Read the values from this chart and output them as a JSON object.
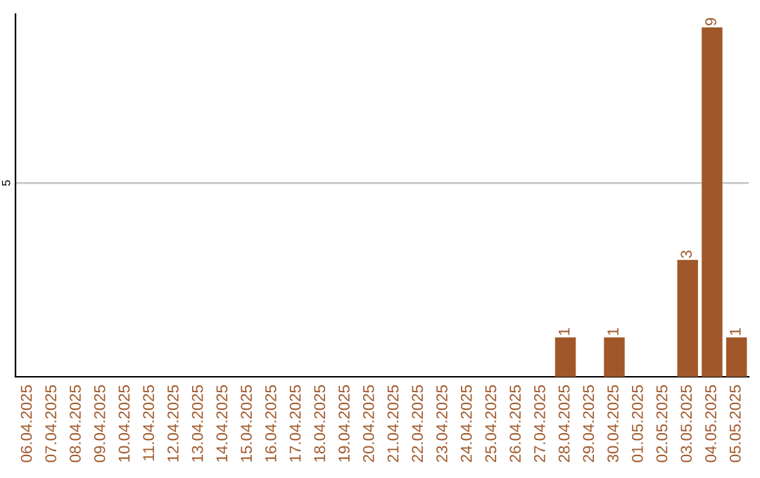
{
  "chart_data": {
    "type": "bar",
    "categories": [
      "06.04.2025",
      "07.04.2025",
      "08.04.2025",
      "09.04.2025",
      "10.04.2025",
      "11.04.2025",
      "12.04.2025",
      "13.04.2025",
      "14.04.2025",
      "15.04.2025",
      "16.04.2025",
      "17.04.2025",
      "18.04.2025",
      "19.04.2025",
      "20.04.2025",
      "21.04.2025",
      "22.04.2025",
      "23.04.2025",
      "24.04.2025",
      "25.04.2025",
      "26.04.2025",
      "27.04.2025",
      "28.04.2025",
      "29.04.2025",
      "30.04.2025",
      "01.05.2025",
      "02.05.2025",
      "03.05.2025",
      "04.05.2025",
      "05.05.2025"
    ],
    "values": [
      null,
      null,
      null,
      null,
      null,
      null,
      null,
      null,
      null,
      null,
      null,
      null,
      null,
      null,
      null,
      null,
      null,
      null,
      null,
      null,
      null,
      null,
      1,
      null,
      1,
      null,
      null,
      3,
      9,
      1
    ],
    "data_labels": true,
    "color": "#a0582a",
    "ref_lines": [
      {
        "axis": "y",
        "value": 5,
        "label": "5",
        "color": "#c8c8c8"
      }
    ],
    "legend": false
  }
}
